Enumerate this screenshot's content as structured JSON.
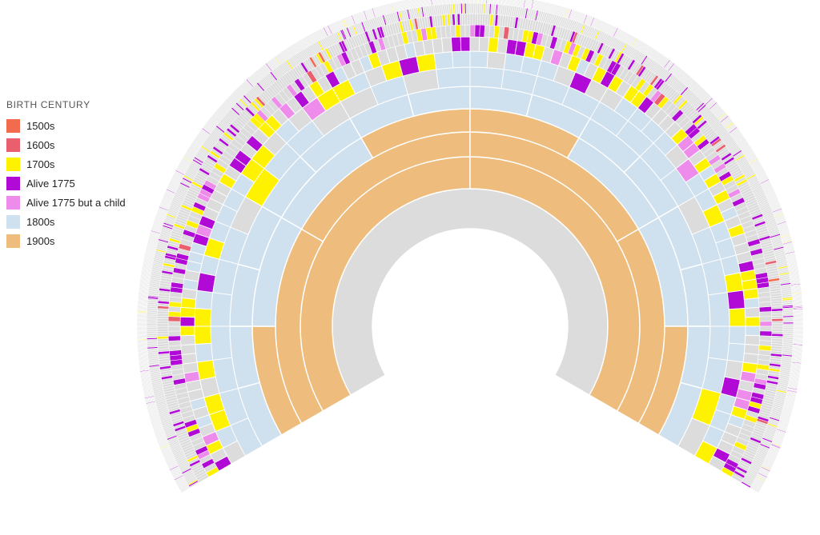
{
  "chart_data": {
    "type": "fan-chart",
    "title": "",
    "legend_title": "BIRTH CENTURY",
    "legend": [
      {
        "key": "c1500",
        "label": "1500s",
        "color": "#f26b4e"
      },
      {
        "key": "c1600",
        "label": "1600s",
        "color": "#e95f6e"
      },
      {
        "key": "c1700",
        "label": "1700s",
        "color": "#fff200"
      },
      {
        "key": "alive",
        "label": "Alive 1775",
        "color": "#b10ad6"
      },
      {
        "key": "child",
        "label": "Alive 1775 but a child",
        "color": "#ee8ceb"
      },
      {
        "key": "c1800",
        "label": "1800s",
        "color": "#cfe0ef"
      },
      {
        "key": "c1900",
        "label": "1900s",
        "color": "#eebd7d"
      }
    ],
    "unknown_color": "#dcdcdc",
    "generations": 12,
    "angle_span_degrees": 240,
    "generation_fills": [
      [
        "unknown"
      ],
      [
        "c1900",
        "c1900"
      ],
      [
        "c1900",
        "c1900",
        "c1900",
        "c1900"
      ],
      [
        "c1900",
        "c1800",
        "c1800",
        "c1900",
        "c1900",
        "c1800",
        "c1800",
        "c1900"
      ],
      [
        "c1800",
        "c1800",
        "c1800",
        "c1800",
        "c1800",
        "c1800",
        "c1800",
        "c1800",
        "c1800",
        "c1800",
        "c1800",
        "c1800",
        "c1800",
        "c1800",
        "c1800",
        "c1800"
      ]
    ],
    "outer_generation_mix": [
      {
        "generation": 6,
        "shares": {
          "c1800": 0.72,
          "c1700": 0.12,
          "unknown": 0.16
        }
      },
      {
        "generation": 7,
        "shares": {
          "c1800": 0.42,
          "c1700": 0.22,
          "child": 0.08,
          "alive": 0.08,
          "unknown": 0.2
        }
      },
      {
        "generation": 8,
        "shares": {
          "c1700": 0.24,
          "child": 0.1,
          "alive": 0.14,
          "c1800": 0.14,
          "unknown": 0.38
        }
      },
      {
        "generation": 9,
        "shares": {
          "alive": 0.18,
          "child": 0.08,
          "c1700": 0.14,
          "unknown": 0.58,
          "c1600": 0.02
        }
      },
      {
        "generation": 10,
        "shares": {
          "alive": 0.1,
          "c1600": 0.03,
          "c1700": 0.05,
          "unknown": 0.8,
          "c1500": 0.02
        }
      },
      {
        "generation": 11,
        "shares": {
          "unknown": 0.93,
          "alive": 0.04,
          "c1700": 0.03
        }
      },
      {
        "generation": 12,
        "shares": {
          "unknown": 0.97,
          "alive": 0.02,
          "c1700": 0.01
        }
      }
    ]
  }
}
